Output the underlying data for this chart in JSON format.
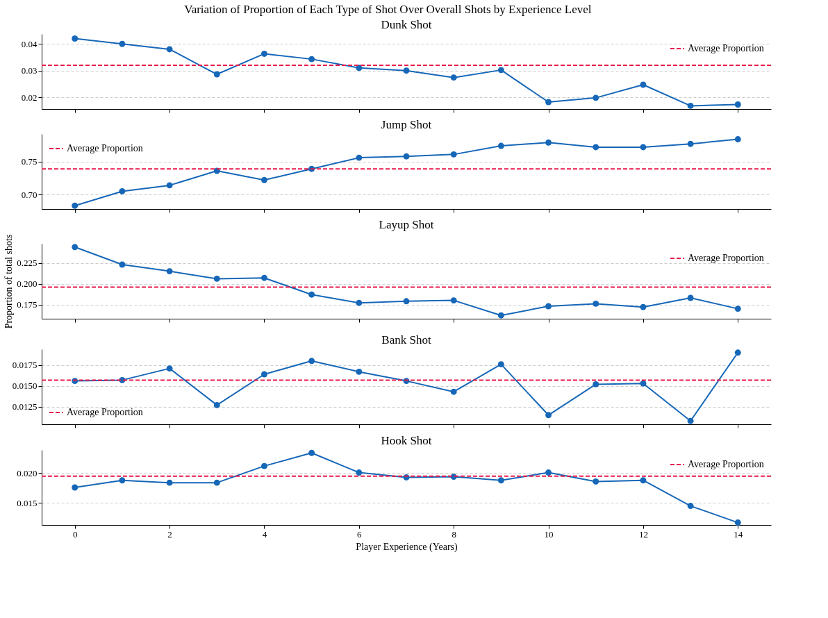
{
  "chart_data": [
    {
      "type": "line",
      "title": "Dunk Shot",
      "annotations": [
        "Variation of Proportion of Each Type of Shot Over Overall Shots by Experience Level"
      ],
      "x": [
        0,
        1,
        2,
        3,
        4,
        5,
        6,
        7,
        8,
        9,
        10,
        11,
        12,
        13,
        14
      ],
      "xlim": [
        -0.7,
        14.7
      ],
      "xticks": [
        0,
        2,
        4,
        6,
        8,
        10,
        12,
        14
      ],
      "tick_labels": "y",
      "ylim": [
        0.0156,
        0.0437
      ],
      "yticks": [
        0.02,
        0.03,
        0.04
      ],
      "series": [
        {
          "color": "#1667b8",
          "values": [
            0.042,
            0.04,
            0.038,
            0.0286,
            0.0363,
            0.0343,
            0.031,
            0.03,
            0.0274,
            0.0302,
            0.0182,
            0.0198,
            0.0247,
            0.0168,
            0.0173
          ]
        }
      ],
      "ref_lines": [
        {
          "axis": "y",
          "value": 0.032,
          "label": "Average Proportion",
          "color": "#e8194b",
          "line_style": "dashed"
        }
      ],
      "grid": "y",
      "legend": "top right",
      "marker": "circle",
      "line_style": "solid"
    },
    {
      "type": "line",
      "title": "Jump Shot",
      "x": [
        0,
        1,
        2,
        3,
        4,
        5,
        6,
        7,
        8,
        9,
        10,
        11,
        12,
        13,
        14
      ],
      "xlim": [
        -0.7,
        14.7
      ],
      "xticks": [
        0,
        2,
        4,
        6,
        8,
        10,
        12,
        14
      ],
      "tick_labels": "y",
      "ylim": [
        0.678,
        0.792
      ],
      "yticks": [
        {
          "value": 0.7,
          "label": "0.70"
        },
        0.75
      ],
      "series": [
        {
          "color": "#1667b8",
          "values": [
            0.683,
            0.705,
            0.714,
            0.736,
            0.722,
            0.739,
            0.756,
            0.758,
            0.761,
            0.774,
            0.779,
            0.772,
            0.772,
            0.777,
            0.784
          ]
        }
      ],
      "ref_lines": [
        {
          "axis": "y",
          "value": 0.739,
          "label": "Average Proportion",
          "color": "#e8194b",
          "line_style": "dashed"
        }
      ],
      "grid": "y",
      "legend": "top left",
      "marker": "circle",
      "line_style": "solid"
    },
    {
      "type": "line",
      "title": "Layup Shot",
      "ylabel": "Proportion of total shots",
      "x": [
        0,
        1,
        2,
        3,
        4,
        5,
        6,
        7,
        8,
        9,
        10,
        11,
        12,
        13,
        14
      ],
      "xlim": [
        -0.7,
        14.7
      ],
      "xticks": [
        0,
        2,
        4,
        6,
        8,
        10,
        12,
        14
      ],
      "tick_labels": "y",
      "ylim": [
        0.158,
        0.248
      ],
      "yticks": [
        0.175,
        {
          "value": 0.2,
          "label": "0.200"
        },
        0.225
      ],
      "series": [
        {
          "color": "#1667b8",
          "values": [
            0.244,
            0.223,
            0.215,
            0.206,
            0.207,
            0.187,
            0.177,
            0.179,
            0.18,
            0.162,
            0.173,
            0.176,
            0.172,
            0.183,
            0.17
          ]
        }
      ],
      "ref_lines": [
        {
          "axis": "y",
          "value": 0.196,
          "label": "Average Proportion",
          "color": "#e8194b",
          "line_style": "dashed"
        }
      ],
      "grid": "y",
      "legend": "top right",
      "marker": "circle",
      "line_style": "solid"
    },
    {
      "type": "line",
      "title": "Bank Shot",
      "x": [
        0,
        1,
        2,
        3,
        4,
        5,
        6,
        7,
        8,
        9,
        10,
        11,
        12,
        13,
        14
      ],
      "xlim": [
        -0.7,
        14.7
      ],
      "xticks": [
        0,
        2,
        4,
        6,
        8,
        10,
        12,
        14
      ],
      "tick_labels": "y",
      "ylim": [
        0.0104,
        0.0194
      ],
      "yticks": [
        0.0125,
        {
          "value": 0.015,
          "label": "0.0150"
        },
        0.0175
      ],
      "series": [
        {
          "color": "#1667b8",
          "values": [
            0.0156,
            0.0157,
            0.0171,
            0.0127,
            0.0164,
            0.018,
            0.0167,
            0.0156,
            0.0143,
            0.0176,
            0.0115,
            0.0152,
            0.0153,
            0.0108,
            0.019
          ]
        }
      ],
      "ref_lines": [
        {
          "axis": "y",
          "value": 0.0157,
          "label": "Average Proportion",
          "color": "#e8194b",
          "line_style": "dashed"
        }
      ],
      "grid": "y",
      "legend": "bottom left",
      "marker": "circle",
      "line_style": "solid"
    },
    {
      "type": "line",
      "title": "Hook Shot",
      "xlabel": "Player Experience (Years)",
      "x": [
        0,
        1,
        2,
        3,
        4,
        5,
        6,
        7,
        8,
        9,
        10,
        11,
        12,
        13,
        14
      ],
      "xlim": [
        -0.7,
        14.7
      ],
      "xticks": [
        0,
        2,
        4,
        6,
        8,
        10,
        12,
        14
      ],
      "ylim": [
        0.0113,
        0.0239
      ],
      "yticks": [
        0.015,
        {
          "value": 0.02,
          "label": "0.020"
        }
      ],
      "series": [
        {
          "color": "#1667b8",
          "values": [
            0.0176,
            0.0188,
            0.0184,
            0.0184,
            0.0212,
            0.0234,
            0.0201,
            0.0193,
            0.0194,
            0.0188,
            0.0201,
            0.0186,
            0.0188,
            0.0145,
            0.0117
          ]
        }
      ],
      "ref_lines": [
        {
          "axis": "y",
          "value": 0.0195,
          "label": "Average Proportion",
          "color": "#e8194b",
          "line_style": "dashed"
        }
      ],
      "grid": "y",
      "legend": "top right",
      "marker": "circle",
      "line_style": "solid"
    }
  ]
}
